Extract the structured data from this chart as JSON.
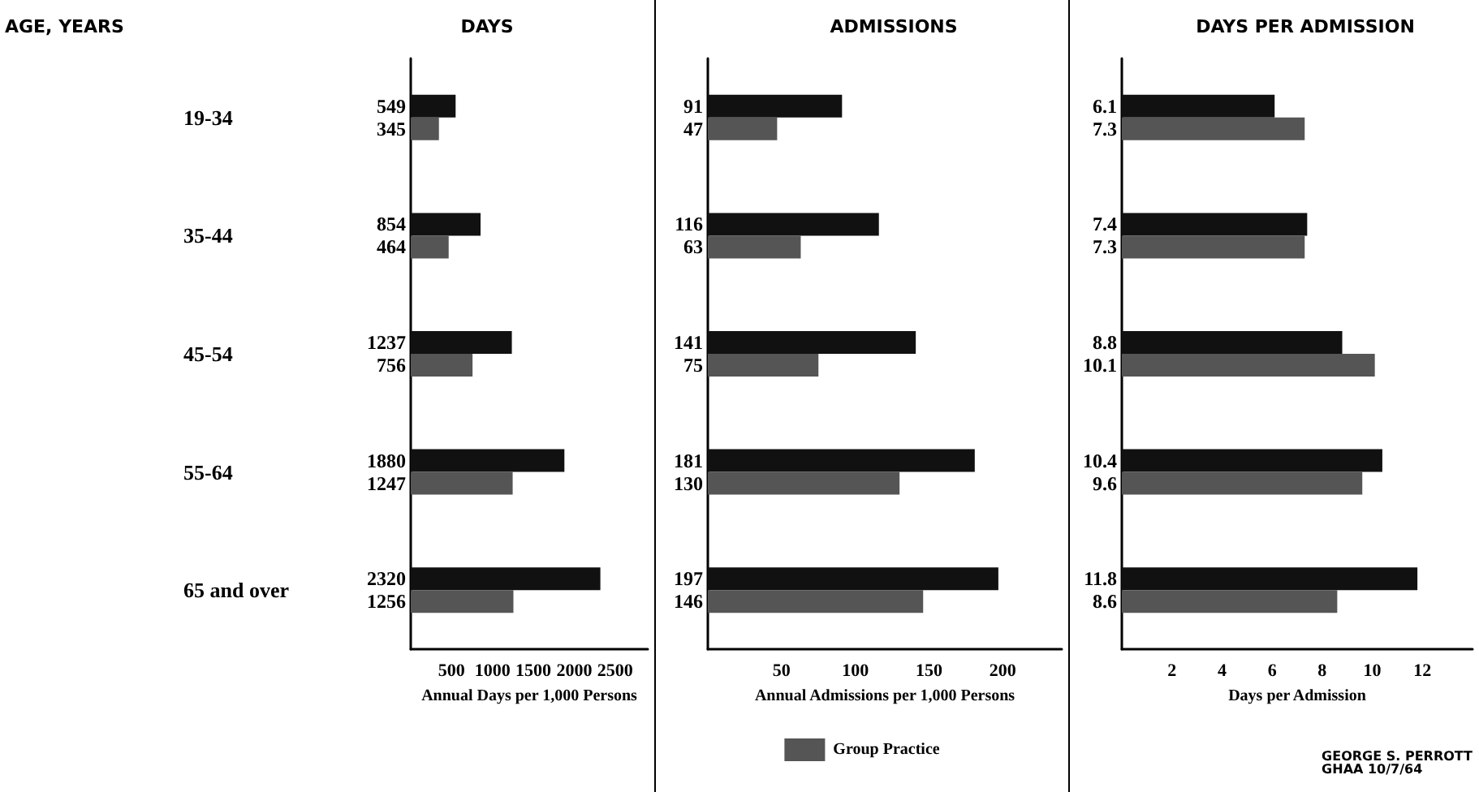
{
  "chart_data": [
    {
      "type": "bar",
      "orientation": "horizontal",
      "title": "DAYS",
      "ylabel": "AGE, YEARS",
      "xlabel": "Annual Days per 1,000 Persons",
      "categories": [
        "19-34",
        "35-44",
        "45-54",
        "55-64",
        "65 and over"
      ],
      "xlim": [
        0,
        2900
      ],
      "xticks": [
        500,
        1000,
        1500,
        2000,
        2500
      ],
      "grid": false,
      "legend": false,
      "data_labels": true,
      "series": [
        {
          "color": "#111111",
          "values": [
            549,
            854,
            1237,
            1880,
            2320
          ]
        },
        {
          "color": "#555555",
          "values": [
            345,
            464,
            756,
            1247,
            1256
          ]
        }
      ]
    },
    {
      "type": "bar",
      "orientation": "horizontal",
      "title": "ADMISSIONS",
      "xlabel": "Annual Admissions per 1,000 Persons",
      "categories": [
        null,
        null,
        null,
        null,
        null
      ],
      "xlim": [
        0,
        240
      ],
      "xticks": [
        50,
        100,
        150,
        200
      ],
      "tick_labels": "x",
      "grid": false,
      "legend": "bottom",
      "data_labels": true,
      "series": [
        {
          "color": "#111111",
          "values": [
            91,
            116,
            141,
            181,
            197
          ]
        },
        {
          "name": "Group Practice",
          "color": "#555555",
          "values": [
            47,
            63,
            75,
            130,
            146
          ]
        }
      ]
    },
    {
      "type": "bar",
      "orientation": "horizontal",
      "title": "DAYS PER ADMISSION",
      "xlabel": "Days per Admission",
      "categories": [
        null,
        null,
        null,
        null,
        null
      ],
      "xlim": [
        0,
        14
      ],
      "xticks": [
        2,
        4,
        6,
        8,
        10,
        12
      ],
      "tick_labels": "x",
      "grid": false,
      "legend": false,
      "data_labels": true,
      "annotations": [
        "GEORGE S. PERROTT\nGHAA 10/7/64"
      ],
      "series": [
        {
          "color": "#111111",
          "values": [
            6.1,
            7.4,
            8.8,
            10.4,
            11.8
          ]
        },
        {
          "color": "#555555",
          "values": [
            7.3,
            7.3,
            10.1,
            9.6,
            8.6
          ]
        }
      ]
    }
  ]
}
